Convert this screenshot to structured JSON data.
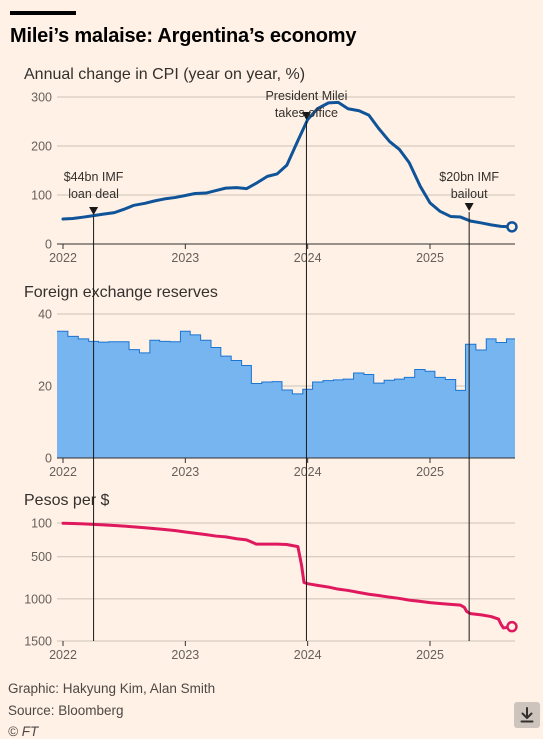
{
  "title": "Milei’s malaise: Argentina’s economy",
  "credits": {
    "graphic": "Graphic: Hakyung Kim, Alan Smith",
    "source": "Source: Bloomberg",
    "copyright": "© FT"
  },
  "colors": {
    "cpi": "#0f5499",
    "reserves_fill": "#76b5f0",
    "reserves_line": "#1a75d1",
    "pesos": "#e0195f",
    "background": "#fff1e5"
  },
  "icons": {
    "download": "download-icon"
  },
  "events": [
    {
      "label_lines": [
        "$44bn IMF",
        "loan deal"
      ],
      "date": 2022.25
    },
    {
      "label_lines": [
        "President Milei",
        "takes office"
      ],
      "date": 2023.99
    },
    {
      "label_lines": [
        "$20bn IMF",
        "bailout"
      ],
      "date": 2025.32
    }
  ],
  "chart_data": [
    {
      "type": "line",
      "title": "Annual change in CPI (year on year, %)",
      "xticks": [
        "2022",
        "2023",
        "2024",
        "2025"
      ],
      "xlim": [
        2022,
        2025.75
      ],
      "ylim": [
        0,
        300
      ],
      "yticks": [
        0,
        100,
        200,
        300
      ],
      "series": [
        {
          "x": [
            2022.0,
            2022.08,
            2022.17,
            2022.25,
            2022.33,
            2022.42,
            2022.5,
            2022.58,
            2022.67,
            2022.75,
            2022.83,
            2022.92,
            2023.0,
            2023.08,
            2023.17,
            2023.25,
            2023.33,
            2023.42,
            2023.5,
            2023.58,
            2023.67,
            2023.75,
            2023.83,
            2023.92,
            2024.0,
            2024.08,
            2024.17,
            2024.25,
            2024.33,
            2024.42,
            2024.5,
            2024.58,
            2024.67,
            2024.75,
            2024.83,
            2024.92,
            2025.0,
            2025.08,
            2025.17,
            2025.25,
            2025.33,
            2025.42,
            2025.5,
            2025.58,
            2025.67
          ],
          "values": [
            51,
            52,
            55,
            58,
            61,
            64,
            71,
            79,
            83,
            88,
            92,
            95,
            99,
            103,
            104,
            109,
            114,
            115,
            113,
            124,
            138,
            143,
            161,
            211,
            254,
            276,
            288,
            289,
            276,
            272,
            263,
            236,
            209,
            193,
            166,
            118,
            84,
            67,
            56,
            55,
            47,
            43,
            39,
            36,
            35
          ]
        }
      ]
    },
    {
      "type": "area",
      "title": "Foreign exchange reserves",
      "xticks": [
        "2022",
        "2023",
        "2024",
        "2025"
      ],
      "xlim": [
        2022,
        2025.75
      ],
      "ylim": [
        0,
        40
      ],
      "yticks": [
        0,
        20,
        40
      ],
      "series": [
        {
          "x": [
            2022.0,
            2022.08,
            2022.17,
            2022.25,
            2022.33,
            2022.42,
            2022.5,
            2022.58,
            2022.67,
            2022.75,
            2022.83,
            2022.92,
            2023.0,
            2023.08,
            2023.17,
            2023.25,
            2023.33,
            2023.42,
            2023.5,
            2023.58,
            2023.67,
            2023.75,
            2023.83,
            2023.92,
            2024.0,
            2024.08,
            2024.17,
            2024.25,
            2024.33,
            2024.42,
            2024.5,
            2024.58,
            2024.67,
            2024.75,
            2024.83,
            2024.92,
            2025.0,
            2025.08,
            2025.17,
            2025.25,
            2025.33,
            2025.42,
            2025.5,
            2025.58,
            2025.67
          ],
          "values": [
            35.2,
            33.8,
            33.1,
            32.4,
            32.2,
            32.3,
            32.3,
            30.1,
            29.2,
            32.7,
            32.4,
            32.3,
            35.2,
            34.2,
            32.7,
            30.7,
            28.3,
            27.1,
            25.7,
            20.7,
            21.1,
            21.2,
            18.9,
            17.8,
            19.1,
            21.1,
            21.5,
            21.7,
            21.9,
            23.6,
            23.2,
            20.8,
            21.6,
            21.9,
            22.4,
            24.6,
            24.1,
            22.4,
            21.8,
            18.8,
            31.6,
            30.0,
            33.1,
            32.1,
            33.1
          ]
        }
      ]
    },
    {
      "type": "line",
      "title": "Pesos per $",
      "xticks": [
        "2022",
        "2023",
        "2024",
        "2025"
      ],
      "xlim": [
        2022,
        2025.75
      ],
      "ylim": [
        100,
        1500
      ],
      "y_inverted": true,
      "yticks": [
        100,
        500,
        1000,
        1500
      ],
      "series": [
        {
          "x": [
            2022.0,
            2022.08,
            2022.17,
            2022.25,
            2022.33,
            2022.42,
            2022.5,
            2022.58,
            2022.67,
            2022.75,
            2022.83,
            2022.92,
            2023.0,
            2023.08,
            2023.17,
            2023.25,
            2023.33,
            2023.42,
            2023.5,
            2023.58,
            2023.63,
            2023.67,
            2023.75,
            2023.83,
            2023.92,
            2023.95,
            2023.97,
            2024.0,
            2024.08,
            2024.17,
            2024.25,
            2024.33,
            2024.42,
            2024.5,
            2024.58,
            2024.67,
            2024.75,
            2024.83,
            2024.92,
            2025.0,
            2025.08,
            2025.17,
            2025.25,
            2025.28,
            2025.3,
            2025.33,
            2025.42,
            2025.5,
            2025.56,
            2025.58,
            2025.6,
            2025.63,
            2025.67
          ],
          "values": [
            103,
            106,
            111,
            116,
            122,
            130,
            137,
            146,
            157,
            167,
            177,
            190,
            207,
            222,
            238,
            255,
            265,
            287,
            300,
            350,
            350,
            350,
            350,
            355,
            380,
            600,
            806,
            820,
            840,
            860,
            885,
            900,
            925,
            945,
            960,
            980,
            995,
            1015,
            1030,
            1045,
            1055,
            1065,
            1075,
            1100,
            1150,
            1175,
            1190,
            1210,
            1240,
            1300,
            1345,
            1340,
            1330
          ]
        }
      ]
    }
  ]
}
